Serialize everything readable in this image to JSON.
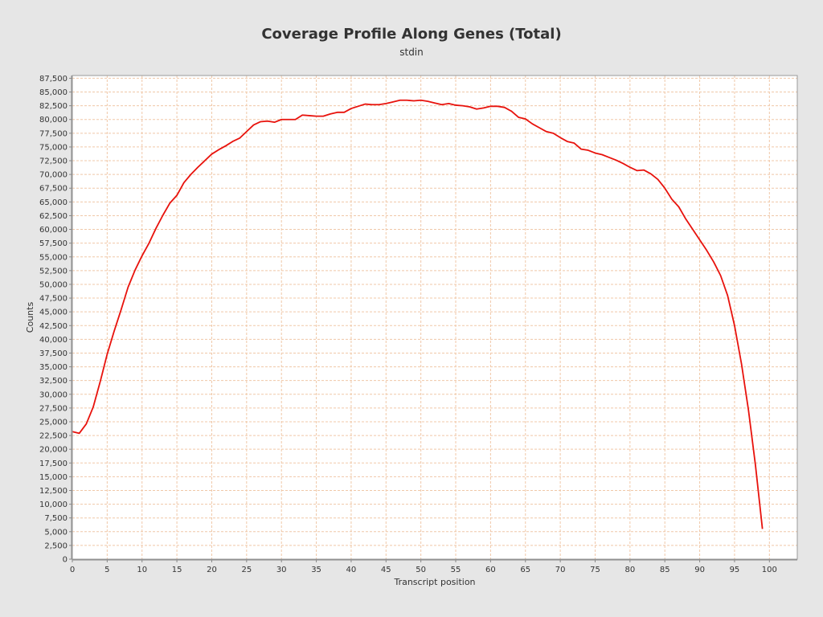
{
  "chart_data": {
    "type": "line",
    "title": "Coverage Profile Along Genes (Total)",
    "subtitle": "stdin",
    "xlabel": "Transcript position",
    "ylabel": "Counts",
    "xlim": [
      0,
      104
    ],
    "ylim": [
      0,
      88000
    ],
    "x_ticks": [
      0,
      5,
      10,
      15,
      20,
      25,
      30,
      35,
      40,
      45,
      50,
      55,
      60,
      65,
      70,
      75,
      80,
      85,
      90,
      95,
      100
    ],
    "y_ticks": [
      0,
      2500,
      5000,
      7500,
      10000,
      12500,
      15000,
      17500,
      20000,
      22500,
      25000,
      27500,
      30000,
      32500,
      35000,
      37500,
      40000,
      42500,
      45000,
      47500,
      50000,
      52500,
      55000,
      57500,
      60000,
      62500,
      65000,
      67500,
      70000,
      72500,
      75000,
      77500,
      80000,
      82500,
      85000,
      87500
    ],
    "grid": true,
    "line_color": "#e8120c",
    "grid_color": "#f0c8a8",
    "plot_bg": "#ffffff",
    "series": [
      {
        "x": [
          0,
          1,
          2,
          3,
          4,
          5,
          6,
          7,
          8,
          9,
          10,
          11,
          12,
          13,
          14,
          15,
          16,
          17,
          18,
          19,
          20,
          21,
          22,
          23,
          24,
          25,
          26,
          27,
          28,
          29,
          30,
          31,
          32,
          33,
          34,
          35,
          36,
          37,
          38,
          39,
          40,
          41,
          42,
          43,
          44,
          45,
          46,
          47,
          48,
          49,
          50,
          51,
          52,
          53,
          54,
          55,
          56,
          57,
          58,
          59,
          60,
          61,
          62,
          63,
          64,
          65,
          66,
          67,
          68,
          69,
          70,
          71,
          72,
          73,
          74,
          75,
          76,
          77,
          78,
          79,
          80,
          81,
          82,
          83,
          84,
          85,
          86,
          87,
          88,
          89,
          90,
          91,
          92,
          93,
          94,
          95,
          96,
          97,
          98,
          99
        ],
        "values": [
          23200,
          22900,
          24600,
          27700,
          32300,
          37300,
          41500,
          45400,
          49500,
          52600,
          55200,
          57500,
          60200,
          62600,
          64800,
          66200,
          68500,
          70000,
          71300,
          72500,
          73700,
          74500,
          75200,
          76000,
          76600,
          77800,
          79000,
          79600,
          79700,
          79500,
          80000,
          80000,
          80000,
          80800,
          80700,
          80600,
          80600,
          81000,
          81300,
          81300,
          82000,
          82400,
          82800,
          82700,
          82700,
          82900,
          83200,
          83500,
          83500,
          83400,
          83500,
          83300,
          83000,
          82700,
          82900,
          82600,
          82500,
          82300,
          81900,
          82100,
          82400,
          82400,
          82200,
          81500,
          80400,
          80100,
          79200,
          78500,
          77800,
          77500,
          76700,
          76000,
          75700,
          74600,
          74400,
          73900,
          73600,
          73100,
          72600,
          72000,
          71300,
          70700,
          70800,
          70100,
          69100,
          67500,
          65500,
          64100,
          61900,
          60000,
          58100,
          56200,
          54100,
          51600,
          48000,
          42500,
          35500,
          27100,
          17100,
          5500
        ]
      }
    ]
  }
}
